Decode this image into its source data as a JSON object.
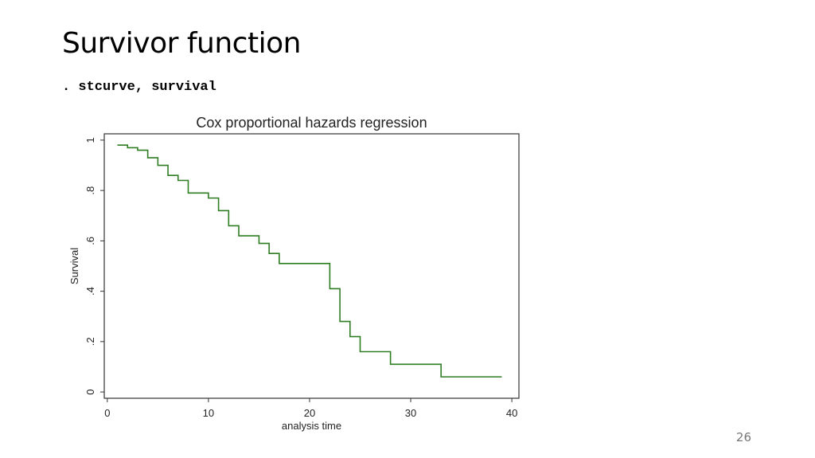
{
  "slide": {
    "title": "Survivor function",
    "command": ". stcurve, survival",
    "page_number": "26"
  },
  "colors": {
    "series": "#2e7d22",
    "frame": "#333333"
  },
  "chart_data": {
    "type": "line",
    "step": true,
    "title": "Cox proportional hazards regression",
    "xlabel": "analysis time",
    "ylabel": "Survival",
    "xlim": [
      -0.3,
      40.7
    ],
    "ylim": [
      -0.025,
      1.025
    ],
    "xticks": [
      0,
      10,
      20,
      30,
      40
    ],
    "xtick_labels": [
      "0",
      "10",
      "20",
      "30",
      "40"
    ],
    "yticks": [
      0,
      0.2,
      0.4,
      0.6,
      0.8,
      1
    ],
    "ytick_labels": [
      "0",
      ".2",
      ".4",
      ".6",
      ".8",
      "1"
    ],
    "grid": false,
    "legend": "none",
    "series": [
      {
        "x": [
          1,
          2,
          3,
          4,
          5,
          6,
          7,
          8,
          10,
          11,
          12,
          13,
          15,
          16,
          17,
          22,
          23,
          24,
          25,
          28,
          33,
          39
        ],
        "y": [
          0.98,
          0.97,
          0.96,
          0.93,
          0.9,
          0.86,
          0.84,
          0.79,
          0.77,
          0.72,
          0.66,
          0.62,
          0.59,
          0.55,
          0.51,
          0.41,
          0.28,
          0.22,
          0.16,
          0.11,
          0.06,
          0.06
        ]
      }
    ]
  }
}
